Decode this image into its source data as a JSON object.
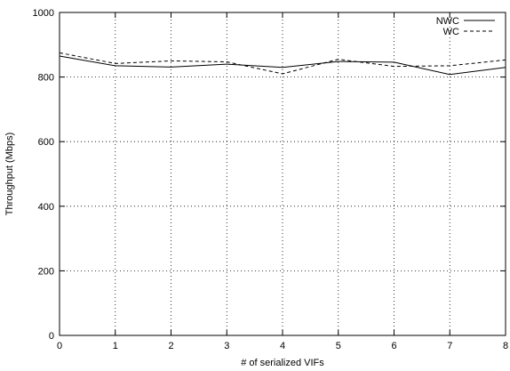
{
  "chart_data": {
    "type": "line",
    "xlabel": "# of serialized VIFs",
    "ylabel": "Throughput (Mbps)",
    "xlim": [
      0,
      8
    ],
    "ylim": [
      0,
      1000
    ],
    "x_ticks": [
      0,
      1,
      2,
      3,
      4,
      5,
      6,
      7,
      8
    ],
    "y_ticks": [
      0,
      200,
      400,
      600,
      800,
      1000
    ],
    "grid": true,
    "legend_position": "top-right",
    "x": [
      0,
      1,
      2,
      3,
      4,
      5,
      6,
      7,
      8
    ],
    "series": [
      {
        "name": "NWC",
        "style": "solid",
        "color": "#000000",
        "values": [
          865,
          835,
          831,
          840,
          830,
          848,
          846,
          808,
          830
        ]
      },
      {
        "name": "WC",
        "style": "dashed",
        "color": "#000000",
        "values": [
          875,
          842,
          850,
          847,
          810,
          855,
          833,
          835,
          853
        ]
      }
    ]
  }
}
